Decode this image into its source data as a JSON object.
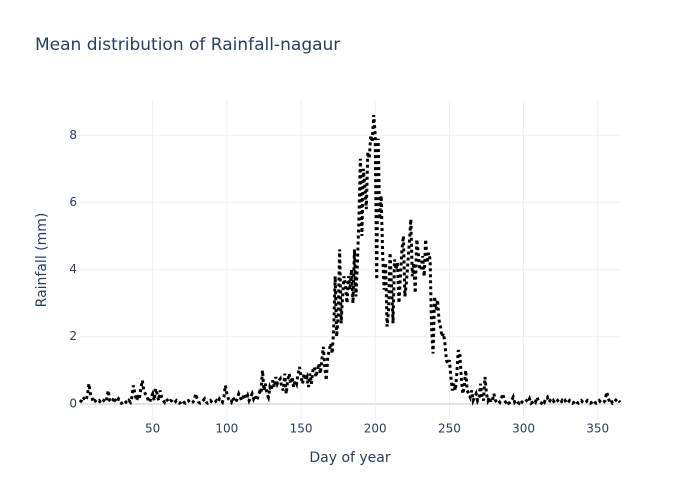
{
  "chart_data": {
    "type": "line",
    "title": "Mean distribution of Rainfall-nagaur",
    "x_label": "Day of year",
    "y_label": "Rainfall (mm)",
    "grid": true,
    "dash": "dot",
    "xlim": [
      1,
      365
    ],
    "ylim": [
      -0.48,
      9.05
    ],
    "xticks": [
      50,
      100,
      150,
      200,
      250,
      300,
      350
    ],
    "yticks": [
      0,
      2,
      4,
      6,
      8
    ],
    "x": [
      1,
      2,
      3,
      4,
      5,
      6,
      7,
      8,
      9,
      10,
      11,
      12,
      13,
      14,
      15,
      16,
      17,
      18,
      19,
      20,
      21,
      22,
      23,
      24,
      25,
      26,
      27,
      28,
      29,
      30,
      31,
      32,
      33,
      34,
      35,
      36,
      37,
      38,
      39,
      40,
      41,
      42,
      43,
      44,
      45,
      46,
      47,
      48,
      49,
      50,
      51,
      52,
      53,
      54,
      55,
      56,
      57,
      58,
      59,
      60,
      61,
      62,
      63,
      64,
      65,
      66,
      67,
      68,
      69,
      70,
      71,
      72,
      73,
      74,
      75,
      76,
      77,
      78,
      79,
      80,
      81,
      82,
      83,
      84,
      85,
      86,
      87,
      88,
      89,
      90,
      91,
      92,
      93,
      94,
      95,
      96,
      97,
      98,
      99,
      100,
      101,
      102,
      103,
      104,
      105,
      106,
      107,
      108,
      109,
      110,
      111,
      112,
      113,
      114,
      115,
      116,
      117,
      118,
      119,
      120,
      121,
      122,
      123,
      124,
      125,
      126,
      127,
      128,
      129,
      130,
      131,
      132,
      133,
      134,
      135,
      136,
      137,
      138,
      139,
      140,
      141,
      142,
      143,
      144,
      145,
      146,
      147,
      148,
      149,
      150,
      151,
      152,
      153,
      154,
      155,
      156,
      157,
      158,
      159,
      160,
      161,
      162,
      163,
      164,
      165,
      166,
      167,
      168,
      169,
      170,
      171,
      172,
      173,
      174,
      175,
      176,
      177,
      178,
      179,
      180,
      181,
      182,
      183,
      184,
      185,
      186,
      187,
      188,
      189,
      190,
      191,
      192,
      193,
      194,
      195,
      196,
      197,
      198,
      199,
      200,
      201,
      202,
      203,
      204,
      205,
      206,
      207,
      208,
      209,
      210,
      211,
      212,
      213,
      214,
      215,
      216,
      217,
      218,
      219,
      220,
      221,
      222,
      223,
      224,
      225,
      226,
      227,
      228,
      229,
      230,
      231,
      232,
      233,
      234,
      235,
      236,
      237,
      238,
      239,
      240,
      241,
      242,
      243,
      244,
      245,
      246,
      247,
      248,
      249,
      250,
      251,
      252,
      253,
      254,
      255,
      256,
      257,
      258,
      259,
      260,
      261,
      262,
      263,
      264,
      265,
      266,
      267,
      268,
      269,
      270,
      271,
      272,
      273,
      274,
      275,
      276,
      277,
      278,
      279,
      280,
      281,
      282,
      283,
      284,
      285,
      286,
      287,
      288,
      289,
      290,
      291,
      292,
      293,
      294,
      295,
      296,
      297,
      298,
      299,
      300,
      301,
      302,
      303,
      304,
      305,
      306,
      307,
      308,
      309,
      310,
      311,
      312,
      313,
      314,
      315,
      316,
      317,
      318,
      319,
      320,
      321,
      322,
      323,
      324,
      325,
      326,
      327,
      328,
      329,
      330,
      331,
      332,
      333,
      334,
      335,
      336,
      337,
      338,
      339,
      340,
      341,
      342,
      343,
      344,
      345,
      346,
      347,
      348,
      349,
      350,
      351,
      352,
      353,
      354,
      355,
      356,
      357,
      358,
      359,
      360,
      361,
      362,
      363,
      364,
      365
    ],
    "series": [
      {
        "color": "#000000",
        "values": [
          0.05,
          0.1,
          0.2,
          0.15,
          0.1,
          0.25,
          0.6,
          0.3,
          0.2,
          0.05,
          0.1,
          0.05,
          0.08,
          0.1,
          0.02,
          0.05,
          0.1,
          0.05,
          0.15,
          0.4,
          0.1,
          0.05,
          0.1,
          0.2,
          0.08,
          0.05,
          0.15,
          0.1,
          0.02,
          0.05,
          0.1,
          0.05,
          0.02,
          0.1,
          0.05,
          0.2,
          0.55,
          0.3,
          0.1,
          0.2,
          0.15,
          0.45,
          0.7,
          0.4,
          0.3,
          0.25,
          0.1,
          0.05,
          0.2,
          0.3,
          0.1,
          0.45,
          0.3,
          0.1,
          0.4,
          0.2,
          0.1,
          0.05,
          0.15,
          0.1,
          0.05,
          0.1,
          0.08,
          0.02,
          0.05,
          0.1,
          0.05,
          0.02,
          0.05,
          0.1,
          0.05,
          0.02,
          0.08,
          0.1,
          0.05,
          0.02,
          0.05,
          0.1,
          0.3,
          0.15,
          0.05,
          0.02,
          0.05,
          0.1,
          0.15,
          0.05,
          0.02,
          0.05,
          0.1,
          0.05,
          0.02,
          0.05,
          0.1,
          0.05,
          0.15,
          0.1,
          0.05,
          0.2,
          0.55,
          0.3,
          0.15,
          0.1,
          0.05,
          0.2,
          0.1,
          0.05,
          0.15,
          0.3,
          0.2,
          0.1,
          0.2,
          0.3,
          0.15,
          0.25,
          0.1,
          0.2,
          0.3,
          0.15,
          0.25,
          0.1,
          0.2,
          0.35,
          0.3,
          1.0,
          0.4,
          0.6,
          0.3,
          0.2,
          0.5,
          0.4,
          0.7,
          0.5,
          0.8,
          0.6,
          0.7,
          0.75,
          0.5,
          0.4,
          0.9,
          0.3,
          0.7,
          0.9,
          0.6,
          0.8,
          0.5,
          0.7,
          0.6,
          0.9,
          1.1,
          0.8,
          0.6,
          0.9,
          0.7,
          0.8,
          0.5,
          0.9,
          0.6,
          1.0,
          1.1,
          0.8,
          1.0,
          1.2,
          0.9,
          1.3,
          1.7,
          1.1,
          0.7,
          1.4,
          1.6,
          1.8,
          1.5,
          2.2,
          3.8,
          2.0,
          2.6,
          4.6,
          2.4,
          3.2,
          3.8,
          3.5,
          3.0,
          3.8,
          3.4,
          4.0,
          3.0,
          4.6,
          3.2,
          4.2,
          5.5,
          7.3,
          5.0,
          7.0,
          6.5,
          5.8,
          7.5,
          7.3,
          8.0,
          7.8,
          8.6,
          8.0,
          3.7,
          7.9,
          5.5,
          6.2,
          4.5,
          3.4,
          4.2,
          2.3,
          2.8,
          4.5,
          3.5,
          2.4,
          4.3,
          4.0,
          4.2,
          3.0,
          3.8,
          4.6,
          5.0,
          3.2,
          3.6,
          4.2,
          4.8,
          5.5,
          3.8,
          4.2,
          3.3,
          4.9,
          4.5,
          4.0,
          4.0,
          4.4,
          3.8,
          4.9,
          4.2,
          4.5,
          4.3,
          2.2,
          1.5,
          3.2,
          2.8,
          3.1,
          2.5,
          2.3,
          2.0,
          2.1,
          1.8,
          1.3,
          1.2,
          1.3,
          0.8,
          0.4,
          0.6,
          0.4,
          0.9,
          1.6,
          1.5,
          0.8,
          0.3,
          0.5,
          1.0,
          0.4,
          0.3,
          0.2,
          0.4,
          0.1,
          0.2,
          0.3,
          0.1,
          0.2,
          0.6,
          0.2,
          0.1,
          0.8,
          0.3,
          0.1,
          0.2,
          0.05,
          0.1,
          0.3,
          0.1,
          0.05,
          0.1,
          0.05,
          0.15,
          0.3,
          0.1,
          0.05,
          0.1,
          0.02,
          0.05,
          0.1,
          0.2,
          0.05,
          0.1,
          0.05,
          0.02,
          0.1,
          0.05,
          0.02,
          0.05,
          0.1,
          0.05,
          0.15,
          0.02,
          0.05,
          0.1,
          0.05,
          0.2,
          0.1,
          0.05,
          0.02,
          0.1,
          0.05,
          0.15,
          0.2,
          0.05,
          0.1,
          0.05,
          0.1,
          0.02,
          0.05,
          0.1,
          0.05,
          0.02,
          0.1,
          0.05,
          0.1,
          0.02,
          0.05,
          0.1,
          0.05,
          0.02,
          0.05,
          0.1,
          0.05,
          0.02,
          0.05,
          0.1,
          0.05,
          0.02,
          0.05,
          0.1,
          0.05,
          0.02,
          0.05,
          0.1,
          0.05,
          0.02,
          0.05,
          0.1,
          0.05,
          0.02,
          0.05,
          0.1,
          0.35,
          0.2,
          0.05,
          0.1,
          0.02,
          0.05,
          0.1,
          0.15,
          0.1,
          0.05
        ]
      }
    ]
  }
}
